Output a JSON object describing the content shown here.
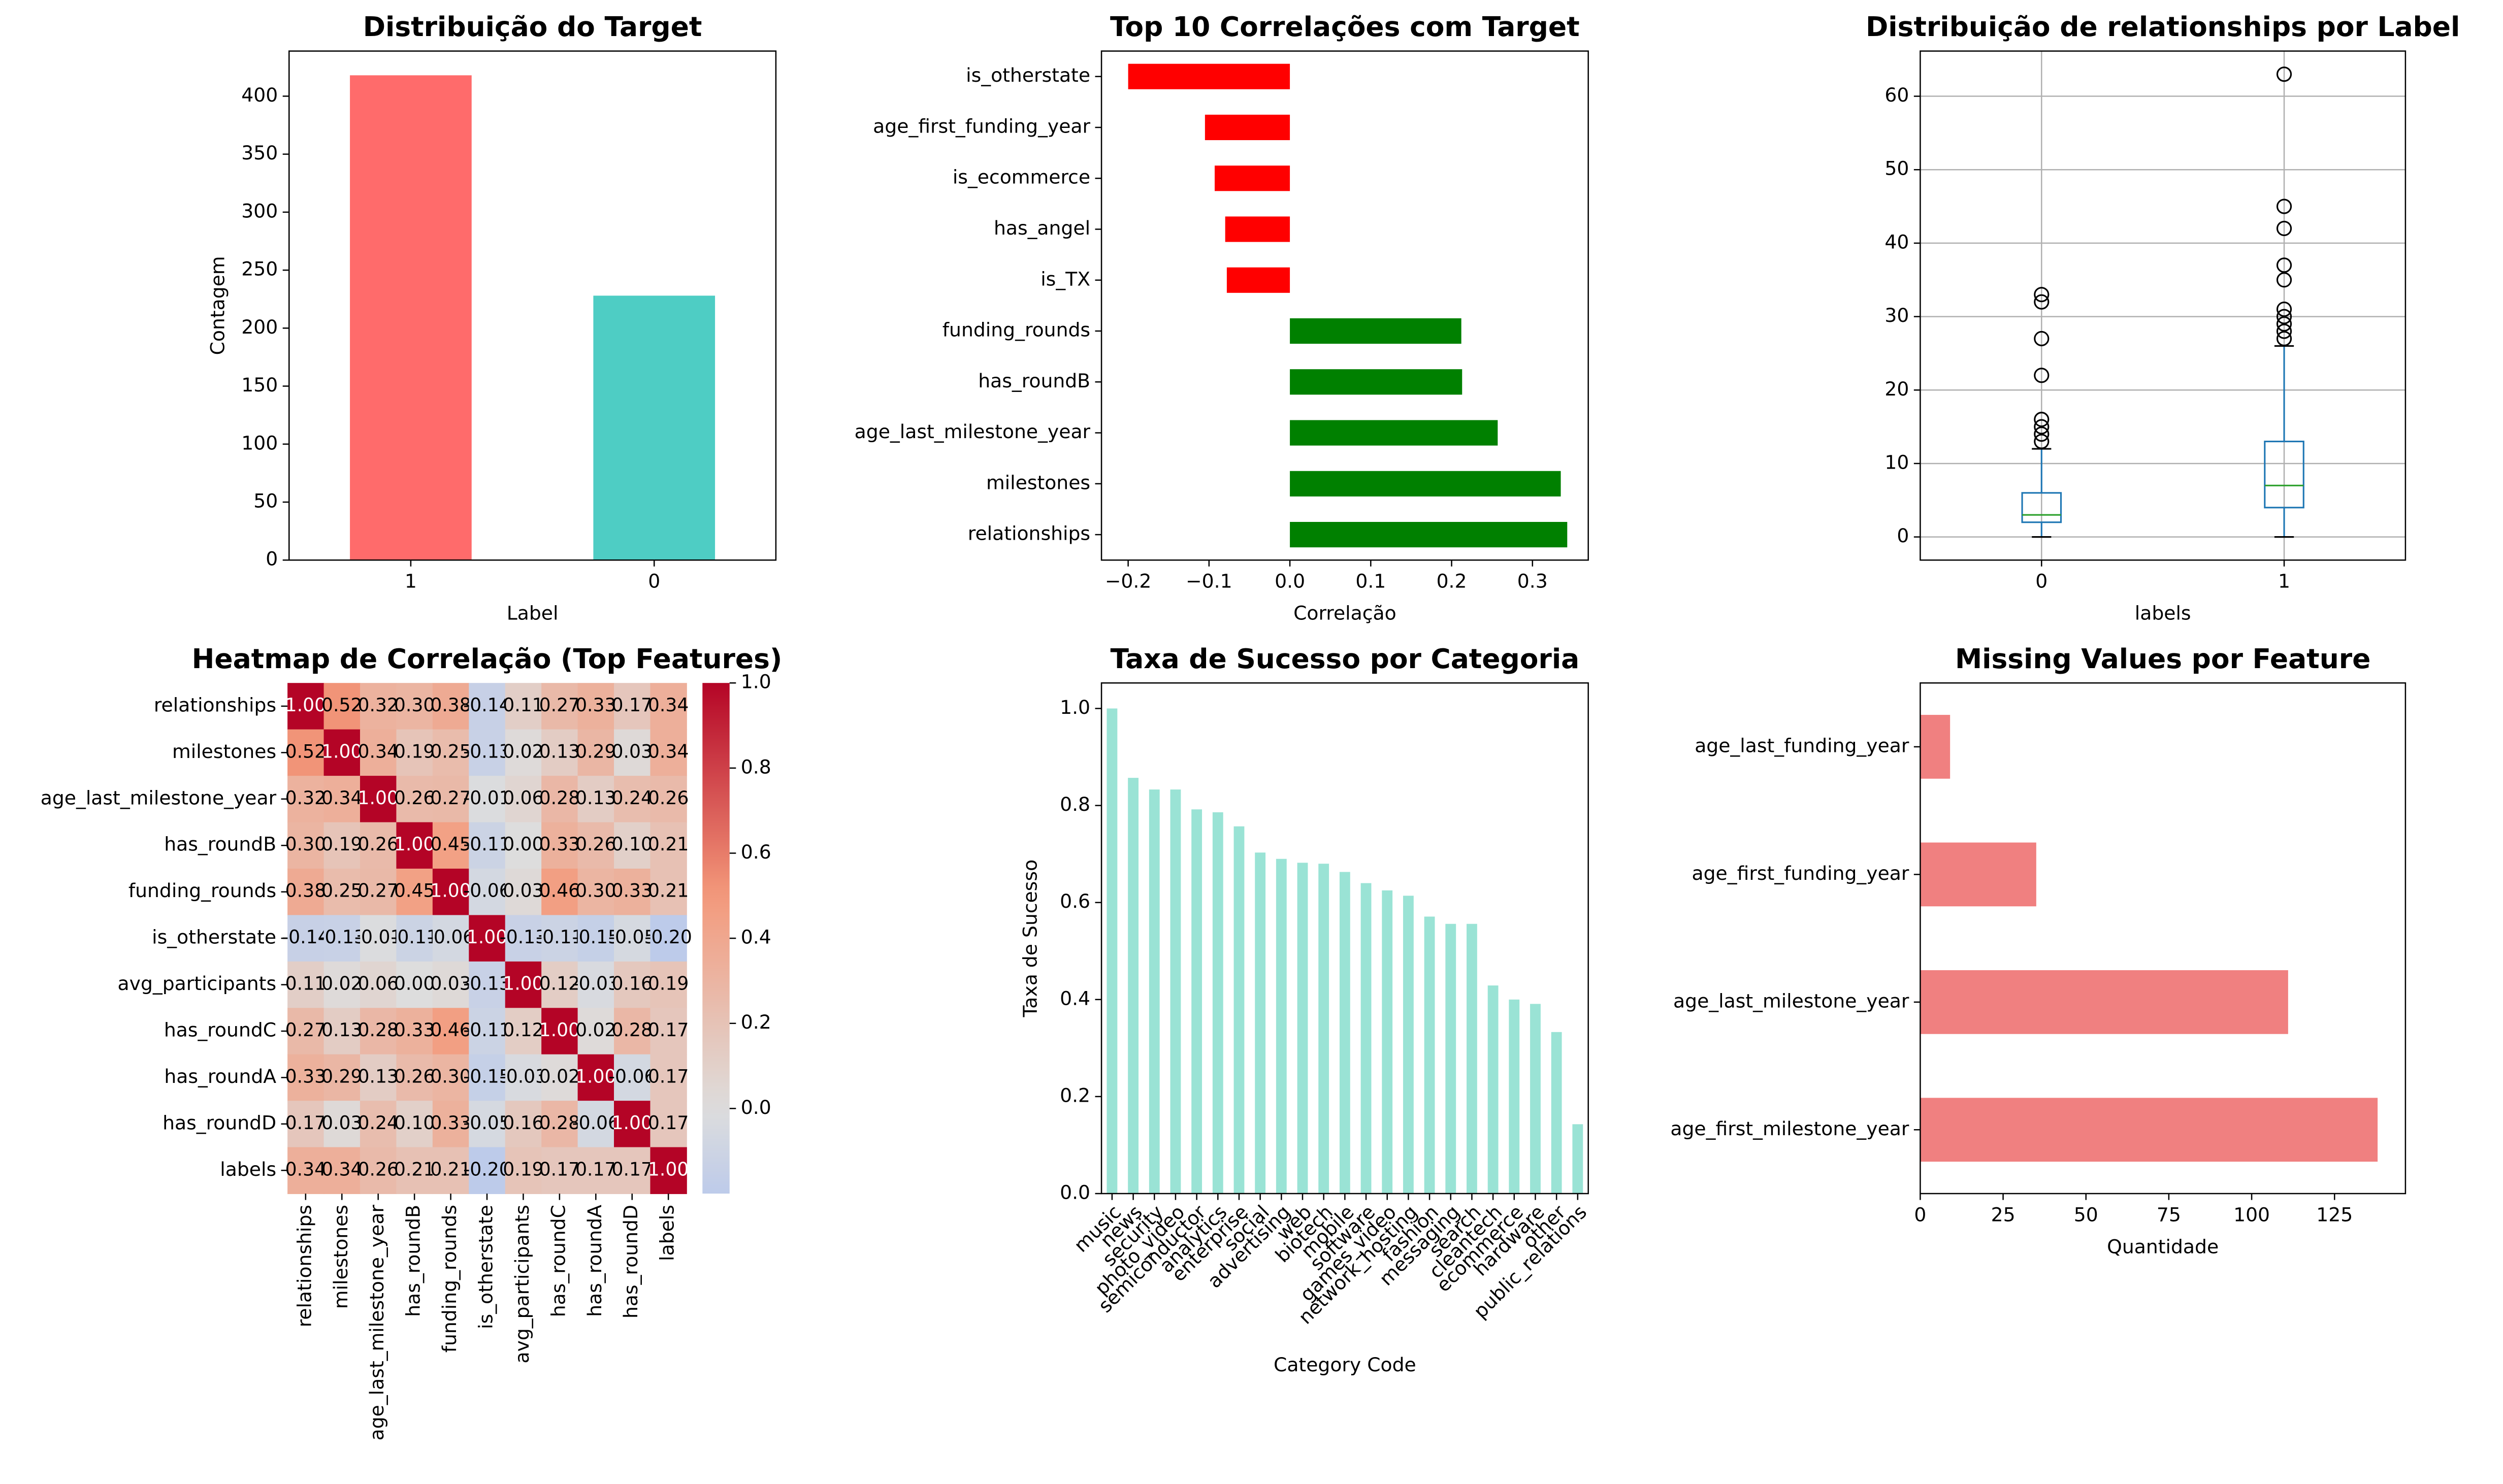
{
  "chart_data": [
    {
      "type": "bar",
      "title": "Distribuição do Target",
      "xlabel": "Label",
      "ylabel": "Contagem",
      "categories": [
        "1",
        "0"
      ],
      "values": [
        418,
        228
      ],
      "colors": [
        "#ff6b6b",
        "#4ecdc4"
      ],
      "ylim": [
        0,
        438.9
      ],
      "yticks": [
        0,
        50,
        100,
        150,
        200,
        250,
        300,
        350,
        400
      ]
    },
    {
      "type": "barh",
      "title": "Top 10 Correlações com Target",
      "xlabel": "Correlação",
      "categories": [
        "is_otherstate",
        "age_first_funding_year",
        "is_ecommerce",
        "has_angel",
        "is_TX",
        "funding_rounds",
        "has_roundB",
        "age_last_milestone_year",
        "milestones",
        "relationships"
      ],
      "values": [
        -0.2,
        -0.105,
        -0.093,
        -0.08,
        -0.078,
        0.212,
        0.213,
        0.257,
        0.335,
        0.343
      ],
      "colors": [
        "#ff0000",
        "#ff0000",
        "#ff0000",
        "#ff0000",
        "#ff0000",
        "#008000",
        "#008000",
        "#008000",
        "#008000",
        "#008000"
      ],
      "xlim": [
        -0.233,
        0.369
      ],
      "xticks": [
        {
          "value": -0.2,
          "label": "−0.2"
        },
        {
          "value": -0.1,
          "label": "−0.1"
        },
        {
          "value": 0,
          "label": "0.0"
        },
        {
          "value": 0.1,
          "label": "0.1"
        },
        {
          "value": 0.2,
          "label": "0.2"
        },
        {
          "value": 0.3,
          "label": "0.3"
        }
      ]
    },
    {
      "type": "box",
      "title": "Distribuição de relationships por Label",
      "xlabel": "labels",
      "categories": [
        "0",
        "1"
      ],
      "color": "#1f77b4",
      "median_color": "#2ca02c",
      "grid": true,
      "boxes": [
        {
          "whislo": 0,
          "q1": 2,
          "med": 3,
          "q3": 6,
          "whishi": 12,
          "fliers": [
            13,
            14,
            15,
            16,
            22,
            27,
            32,
            33
          ]
        },
        {
          "whislo": 0,
          "q1": 4,
          "med": 7,
          "q3": 13,
          "whishi": 26,
          "fliers": [
            27,
            28,
            29,
            30,
            31,
            35,
            37,
            42,
            45,
            63
          ]
        }
      ],
      "ylim": [
        -3.15,
        66.15
      ],
      "yticks": [
        0,
        10,
        20,
        30,
        40,
        50,
        60
      ]
    },
    {
      "type": "heatmap",
      "title": "Heatmap de Correlação (Top Features)",
      "cmap": "coolwarm",
      "center": 0,
      "labels": [
        "relationships",
        "milestones",
        "age_last_milestone_year",
        "has_roundB",
        "funding_rounds",
        "is_otherstate",
        "avg_participants",
        "has_roundC",
        "has_roundA",
        "has_roundD",
        "labels"
      ],
      "values": [
        [
          1,
          0.52,
          0.32,
          0.3,
          0.38,
          -0.14,
          0.11,
          0.27,
          0.33,
          0.17,
          0.34
        ],
        [
          0.52,
          1,
          0.34,
          0.19,
          0.25,
          -0.13,
          0.02,
          0.13,
          0.29,
          0.03,
          0.34
        ],
        [
          0.32,
          0.34,
          1,
          0.26,
          0.27,
          -0.01,
          0.06,
          0.28,
          0.13,
          0.24,
          0.26
        ],
        [
          0.3,
          0.19,
          0.26,
          1,
          0.45,
          -0.11,
          0,
          0.33,
          0.26,
          0.1,
          0.21
        ],
        [
          0.38,
          0.25,
          0.27,
          0.45,
          1,
          -0.06,
          0.03,
          0.46,
          0.3,
          0.33,
          0.21
        ],
        [
          -0.14,
          -0.13,
          -0.01,
          -0.11,
          -0.06,
          1,
          -0.13,
          -0.11,
          -0.15,
          -0.05,
          -0.2
        ],
        [
          0.11,
          0.02,
          0.06,
          0,
          0.03,
          -0.13,
          1,
          0.12,
          -0.03,
          0.16,
          0.19
        ],
        [
          0.27,
          0.13,
          0.28,
          0.33,
          0.46,
          -0.11,
          0.12,
          1,
          0.02,
          0.28,
          0.17
        ],
        [
          0.33,
          0.29,
          0.13,
          0.26,
          0.3,
          -0.15,
          -0.03,
          0.02,
          1,
          -0.06,
          0.17
        ],
        [
          0.17,
          0.03,
          0.24,
          0.1,
          0.33,
          -0.05,
          0.16,
          0.28,
          -0.06,
          1,
          0.17
        ],
        [
          0.34,
          0.34,
          0.26,
          0.21,
          0.21,
          -0.2,
          0.19,
          0.17,
          0.17,
          0.17,
          1
        ]
      ],
      "value_labels": [
        [
          "1.00",
          "0.52",
          "0.32",
          "0.30",
          "0.38",
          "-0.14",
          "0.11",
          "0.27",
          "0.33",
          "0.17",
          "0.34"
        ],
        [
          "0.52",
          "1.00",
          "0.34",
          "0.19",
          "0.25",
          "-0.13",
          "0.02",
          "0.13",
          "0.29",
          "0.03",
          "0.34"
        ],
        [
          "0.32",
          "0.34",
          "1.00",
          "0.26",
          "0.27",
          "-0.01",
          "0.06",
          "0.28",
          "0.13",
          "0.24",
          "0.26"
        ],
        [
          "0.30",
          "0.19",
          "0.26",
          "1.00",
          "0.45",
          "-0.11",
          "0.00",
          "0.33",
          "0.26",
          "0.10",
          "0.21"
        ],
        [
          "0.38",
          "0.25",
          "0.27",
          "0.45",
          "1.00",
          "-0.06",
          "0.03",
          "0.46",
          "0.30",
          "0.33",
          "0.21"
        ],
        [
          "-0.14",
          "-0.13",
          "-0.01",
          "-0.11",
          "-0.06",
          "1.00",
          "-0.13",
          "-0.11",
          "-0.15",
          "-0.05",
          "-0.20"
        ],
        [
          "0.11",
          "0.02",
          "0.06",
          "0.00",
          "0.03",
          "-0.13",
          "1.00",
          "0.12",
          "-0.03",
          "0.16",
          "0.19"
        ],
        [
          "0.27",
          "0.13",
          "0.28",
          "0.33",
          "0.46",
          "-0.11",
          "0.12",
          "1.00",
          "0.02",
          "0.28",
          "0.17"
        ],
        [
          "0.33",
          "0.29",
          "0.13",
          "0.26",
          "0.30",
          "-0.15",
          "-0.03",
          "0.02",
          "1.00",
          "-0.06",
          "0.17"
        ],
        [
          "0.17",
          "0.03",
          "0.24",
          "0.10",
          "0.33",
          "-0.05",
          "0.16",
          "0.28",
          "-0.06",
          "1.00",
          "0.17"
        ],
        [
          "0.34",
          "0.34",
          "0.26",
          "0.21",
          "0.21",
          "-0.20",
          "0.19",
          "0.17",
          "0.17",
          "0.17",
          "1.00"
        ]
      ],
      "clim": [
        -0.2,
        1
      ],
      "cticks": [
        {
          "value": 0,
          "label": "0.0"
        },
        {
          "value": 0.2,
          "label": "0.2"
        },
        {
          "value": 0.4,
          "label": "0.4"
        },
        {
          "value": 0.6,
          "label": "0.6"
        },
        {
          "value": 0.8,
          "label": "0.8"
        },
        {
          "value": 1,
          "label": "1.0"
        }
      ]
    },
    {
      "type": "bar",
      "title": "Taxa de Sucesso por Categoria",
      "xlabel": "Category Code",
      "ylabel": "Taxa de Sucesso",
      "categories": [
        "music",
        "news",
        "security",
        "photo_video",
        "semiconductor",
        "analytics",
        "enterprise",
        "social",
        "advertising",
        "web",
        "biotech",
        "mobile",
        "software",
        "games_video",
        "network_hosting",
        "fashion",
        "messaging",
        "search",
        "cleantech",
        "ecommerce",
        "hardware",
        "other",
        "public_relations"
      ],
      "values": [
        1.0,
        0.857,
        0.833,
        0.833,
        0.792,
        0.786,
        0.757,
        0.703,
        0.69,
        0.682,
        0.68,
        0.663,
        0.64,
        0.625,
        0.614,
        0.571,
        0.556,
        0.556,
        0.429,
        0.4,
        0.391,
        0.333,
        0.143
      ],
      "color": "#95e1d3",
      "ylim": [
        0,
        1.0526
      ],
      "yticks": [
        {
          "value": 0,
          "label": "0.0"
        },
        {
          "value": 0.2,
          "label": "0.2"
        },
        {
          "value": 0.4,
          "label": "0.4"
        },
        {
          "value": 0.6,
          "label": "0.6"
        },
        {
          "value": 0.8,
          "label": "0.8"
        },
        {
          "value": 1,
          "label": "1.0"
        }
      ]
    },
    {
      "type": "barh",
      "title": "Missing Values por Feature",
      "xlabel": "Quantidade",
      "categories": [
        "age_last_funding_year",
        "age_first_funding_year",
        "age_last_milestone_year",
        "age_first_milestone_year"
      ],
      "values": [
        9,
        35,
        111,
        138
      ],
      "color": "#f08080",
      "xlim": [
        0,
        146.4
      ],
      "xticks": [
        0,
        25,
        50,
        75,
        100,
        125
      ]
    }
  ]
}
